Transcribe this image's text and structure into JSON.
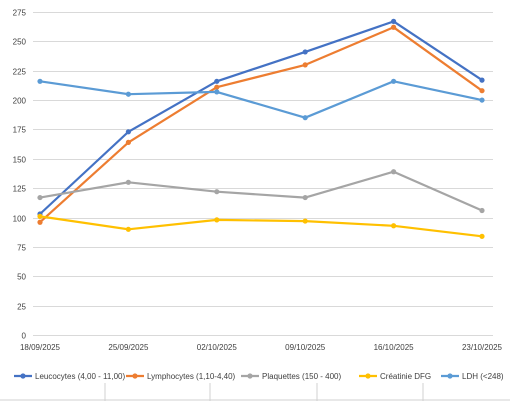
{
  "chart_data": {
    "type": "line",
    "title": "",
    "xlabel": "",
    "ylabel": "",
    "categories": [
      "18/09/2025",
      "25/09/2025",
      "02/10/2025",
      "09/10/2025",
      "16/10/2025",
      "23/10/2025"
    ],
    "ylim": [
      0,
      275
    ],
    "yticks": [
      "0",
      "25",
      "50",
      "75",
      "100",
      "125",
      "150",
      "175",
      "200",
      "225",
      "250",
      "275"
    ],
    "grid": true,
    "legend_position": "bottom",
    "series": [
      {
        "name": "Leucocytes (4,00 - 11,00)",
        "color": "#4472c4",
        "values": [
          103,
          173,
          216,
          241,
          267,
          217
        ]
      },
      {
        "name": "Lymphocytes (1,10-4,40)",
        "color": "#ed7d31",
        "values": [
          96,
          164,
          211,
          230,
          262,
          208
        ]
      },
      {
        "name": "Plaquettes (150 - 400)",
        "color": "#a5a5a5",
        "values": [
          117,
          130,
          122,
          117,
          139,
          106
        ]
      },
      {
        "name": "Créatinie DFG",
        "color": "#ffc000",
        "values": [
          101,
          90,
          98,
          97,
          93,
          84
        ]
      },
      {
        "name": "LDH (<248)",
        "color": "#5b9bd5",
        "values": [
          216,
          205,
          207,
          185,
          216,
          200
        ]
      }
    ]
  }
}
